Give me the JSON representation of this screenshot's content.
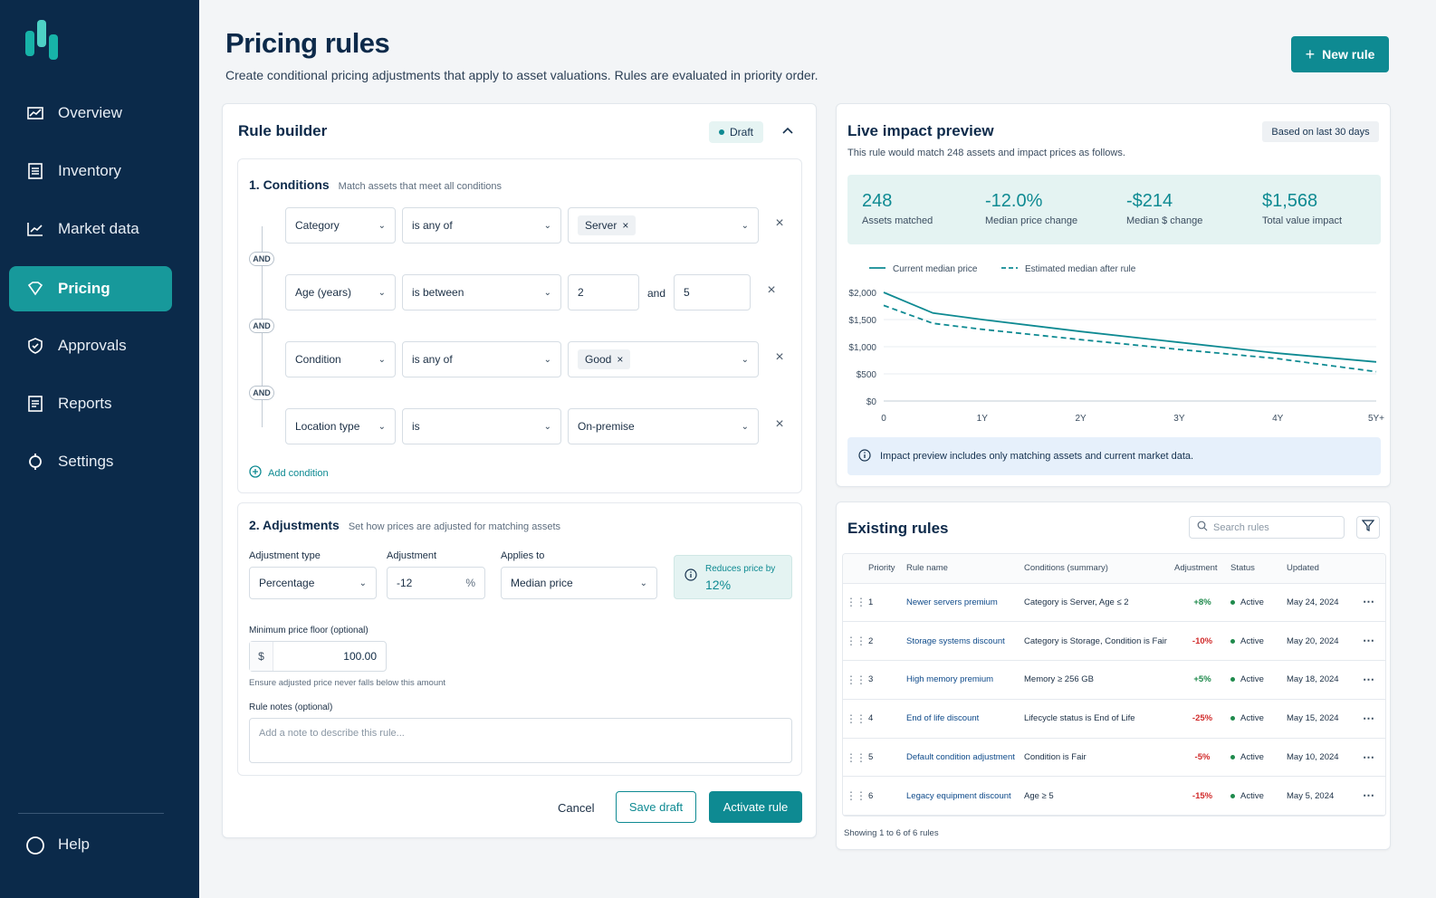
{
  "nav": {
    "items": [
      {
        "label": "Overview",
        "icon": "chart-icon"
      },
      {
        "label": "Inventory",
        "icon": "list-icon"
      },
      {
        "label": "Market data",
        "icon": "trend-icon"
      },
      {
        "label": "Pricing",
        "icon": "tag-icon"
      },
      {
        "label": "Approvals",
        "icon": "shield-check-icon"
      },
      {
        "label": "Reports",
        "icon": "report-icon"
      },
      {
        "label": "Settings",
        "icon": "gear-icon"
      }
    ],
    "active": "Pricing",
    "help": "Help"
  },
  "header": {
    "title": "Pricing rules",
    "subtitle": "Create conditional pricing adjustments that apply to asset valuations. Rules are evaluated in priority order.",
    "new_rule": "New rule"
  },
  "builder": {
    "title": "Rule builder",
    "status": "Draft",
    "conditions": {
      "title": "1.  Conditions",
      "subtitle": "Match assets that meet all conditions",
      "and_label": "AND",
      "rows": [
        {
          "field": "Category",
          "operator": "is any of",
          "chip": "Server"
        },
        {
          "field": "Age (years)",
          "operator": "is between",
          "min": "2",
          "between": "and",
          "max": "5"
        },
        {
          "field": "Condition",
          "operator": "is any of",
          "chip": "Good"
        },
        {
          "field": "Location type",
          "operator": "is",
          "value": "On-premise"
        }
      ],
      "add": "Add condition"
    },
    "adjustments": {
      "title": "2.  Adjustments",
      "subtitle": "Set how prices are adjusted for matching assets",
      "type_label": "Adjustment type",
      "type_value": "Percentage",
      "adj_label": "Adjustment",
      "adj_value": "-12",
      "adj_unit": "%",
      "applies_label": "Applies to",
      "applies_value": "Median price",
      "reduces_label": "Reduces price by",
      "reduces_value": "12%",
      "floor_label": "Minimum price floor (optional)",
      "floor_currency": "$",
      "floor_value": "100.00",
      "floor_help": "Ensure adjusted price never falls below this amount",
      "notes_label": "Rule notes (optional)",
      "notes_placeholder": "Add a note to describe this rule..."
    },
    "actions": {
      "cancel": "Cancel",
      "save": "Save draft",
      "activate": "Activate rule"
    }
  },
  "preview": {
    "title": "Live impact preview",
    "badge": "Based on last 30 days",
    "subtitle": "This rule would match 248 assets and impact prices as follows.",
    "stats": [
      {
        "value": "248",
        "label": "Assets matched"
      },
      {
        "value": "-12.0%",
        "label": "Median price change"
      },
      {
        "value": "-$214",
        "label": "Median $ change"
      },
      {
        "value": "$1,568",
        "label": "Total value impact"
      }
    ],
    "info": "Impact preview includes only matching assets and current market data."
  },
  "chart_data": {
    "type": "line",
    "x": [
      0,
      0.5,
      1,
      2,
      3,
      4,
      5
    ],
    "xticks": [
      "0",
      "1Y",
      "2Y",
      "3Y",
      "4Y",
      "5Y+"
    ],
    "yticks": [
      "$0",
      "$500",
      "$1,000",
      "$1,500",
      "$2,000"
    ],
    "ylim": [
      0,
      2000
    ],
    "series": [
      {
        "name": "Current median price",
        "style": "solid",
        "color": "#0e8a92",
        "values": [
          2000,
          1620,
          1500,
          1280,
          1080,
          880,
          720
        ]
      },
      {
        "name": "Estimated median after rule",
        "style": "dashed",
        "color": "#0e8a92",
        "values": [
          1760,
          1430,
          1320,
          1130,
          950,
          780,
          540
        ]
      }
    ],
    "grid": true,
    "legend": "top-left"
  },
  "rules": {
    "title": "Existing rules",
    "search_placeholder": "Search rules",
    "columns": [
      "Priority",
      "Rule name",
      "Conditions (summary)",
      "Adjustment",
      "Status",
      "Updated"
    ],
    "rows": [
      {
        "priority": "1",
        "name": "Newer servers premium",
        "conditions": "Category is Server, Age ≤ 2",
        "adjustment": "+8%",
        "sign": "pos",
        "status": "Active",
        "updated": "May 24, 2024"
      },
      {
        "priority": "2",
        "name": "Storage systems discount",
        "conditions": "Category is Storage, Condition is Fair",
        "adjustment": "-10%",
        "sign": "neg",
        "status": "Active",
        "updated": "May 20, 2024"
      },
      {
        "priority": "3",
        "name": "High memory premium",
        "conditions": "Memory ≥ 256 GB",
        "adjustment": "+5%",
        "sign": "pos",
        "status": "Active",
        "updated": "May 18, 2024"
      },
      {
        "priority": "4",
        "name": "End of life discount",
        "conditions": "Lifecycle status is End of Life",
        "adjustment": "-25%",
        "sign": "neg",
        "status": "Active",
        "updated": "May 15, 2024"
      },
      {
        "priority": "5",
        "name": "Default condition adjustment",
        "conditions": "Condition is Fair",
        "adjustment": "-5%",
        "sign": "neg",
        "status": "Active",
        "updated": "May 10, 2024"
      },
      {
        "priority": "6",
        "name": "Legacy equipment discount",
        "conditions": "Age ≥ 5",
        "adjustment": "-15%",
        "sign": "neg",
        "status": "Active",
        "updated": "May 5, 2024"
      }
    ],
    "footer": "Showing 1 to 6 of 6 rules"
  }
}
